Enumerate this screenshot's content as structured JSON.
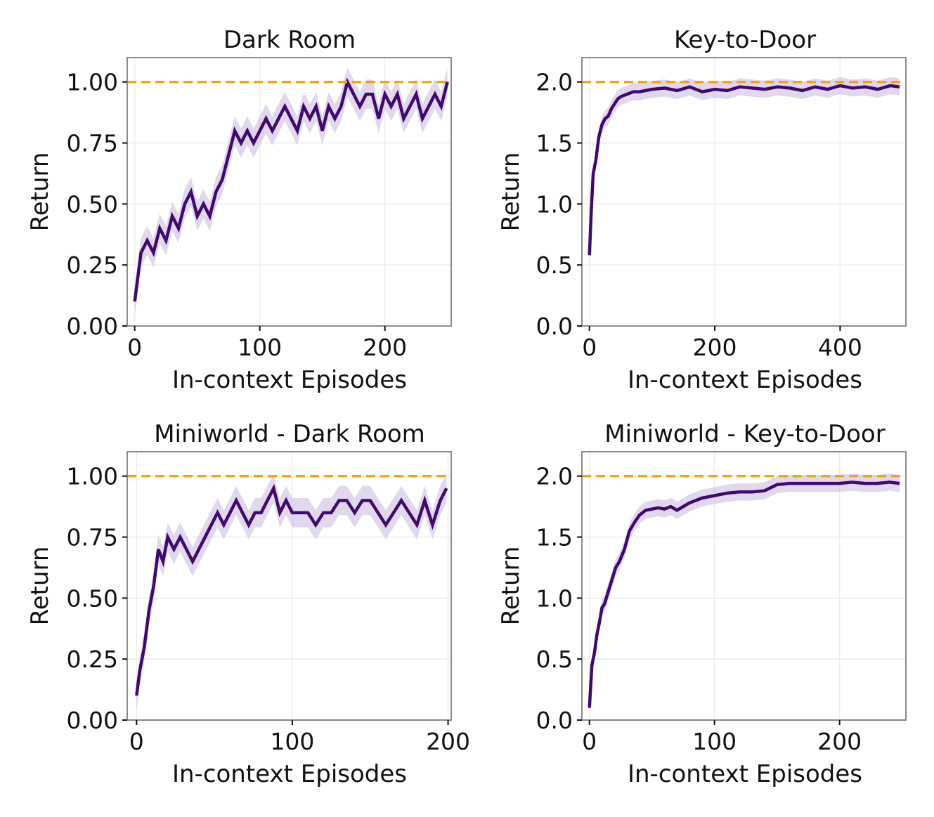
{
  "colors": {
    "line": "#3f0a6b",
    "band": "#cbb8e0",
    "optimal": "#f5a316",
    "grid": "#ececec",
    "frame": "#8a8a8a"
  },
  "chart_data": [
    {
      "type": "line",
      "title": "Dark Room",
      "xlabel": "In-context Episodes",
      "ylabel": "Return",
      "xlim": [
        -6,
        253
      ],
      "ylim": [
        0,
        1.1
      ],
      "xticks": [
        0,
        100,
        200
      ],
      "yticks": [
        0.0,
        0.25,
        0.5,
        0.75,
        1.0
      ],
      "ytick_labels": [
        "0.00",
        "0.25",
        "0.50",
        "0.75",
        "1.00"
      ],
      "optimal_return": 1.0,
      "band_halfwidth": 0.06,
      "series": [
        {
          "name": "mean return",
          "x": [
            0,
            5,
            10,
            15,
            20,
            25,
            30,
            35,
            40,
            45,
            50,
            55,
            60,
            65,
            70,
            75,
            80,
            85,
            90,
            95,
            100,
            105,
            110,
            115,
            120,
            125,
            130,
            135,
            140,
            145,
            150,
            155,
            160,
            165,
            170,
            175,
            180,
            185,
            190,
            195,
            200,
            205,
            210,
            215,
            220,
            225,
            230,
            235,
            240,
            245,
            250
          ],
          "y": [
            0.1,
            0.3,
            0.35,
            0.3,
            0.4,
            0.35,
            0.45,
            0.4,
            0.5,
            0.55,
            0.45,
            0.5,
            0.45,
            0.55,
            0.6,
            0.7,
            0.8,
            0.75,
            0.8,
            0.75,
            0.8,
            0.85,
            0.8,
            0.85,
            0.9,
            0.85,
            0.8,
            0.9,
            0.85,
            0.9,
            0.8,
            0.9,
            0.85,
            0.9,
            1.0,
            0.95,
            0.9,
            0.95,
            0.95,
            0.85,
            0.95,
            0.9,
            0.95,
            0.85,
            0.9,
            0.95,
            0.85,
            0.9,
            0.95,
            0.9,
            1.0
          ]
        }
      ]
    },
    {
      "type": "line",
      "title": "Key-to-Door",
      "xlabel": "In-context Episodes",
      "ylabel": "Return",
      "xlim": [
        -12,
        505
      ],
      "ylim": [
        0,
        2.2
      ],
      "xticks": [
        0,
        200,
        400
      ],
      "yticks": [
        0.0,
        0.5,
        1.0,
        1.5,
        2.0
      ],
      "ytick_labels": [
        "0.0",
        "0.5",
        "1.0",
        "1.5",
        "2.0"
      ],
      "optimal_return": 2.0,
      "band_halfwidth": 0.07,
      "series": [
        {
          "name": "mean return",
          "x": [
            0,
            3,
            6,
            10,
            15,
            20,
            25,
            30,
            35,
            40,
            45,
            50,
            60,
            70,
            80,
            90,
            100,
            120,
            140,
            160,
            180,
            200,
            220,
            240,
            260,
            280,
            300,
            320,
            340,
            360,
            380,
            400,
            420,
            440,
            460,
            480,
            495
          ],
          "y": [
            0.58,
            0.95,
            1.25,
            1.35,
            1.55,
            1.65,
            1.7,
            1.72,
            1.78,
            1.82,
            1.86,
            1.88,
            1.9,
            1.92,
            1.92,
            1.93,
            1.94,
            1.95,
            1.93,
            1.96,
            1.92,
            1.94,
            1.93,
            1.96,
            1.95,
            1.94,
            1.96,
            1.95,
            1.93,
            1.96,
            1.94,
            1.97,
            1.95,
            1.96,
            1.94,
            1.97,
            1.96
          ]
        }
      ]
    },
    {
      "type": "line",
      "title": "Miniworld - Dark Room",
      "xlabel": "In-context Episodes",
      "ylabel": "Return",
      "xlim": [
        -6,
        202
      ],
      "ylim": [
        0,
        1.1
      ],
      "xticks": [
        0,
        100,
        200
      ],
      "yticks": [
        0.0,
        0.25,
        0.5,
        0.75,
        1.0
      ],
      "ytick_labels": [
        "0.00",
        "0.25",
        "0.50",
        "0.75",
        "1.00"
      ],
      "optimal_return": 1.0,
      "band_halfwidth": 0.06,
      "series": [
        {
          "name": "mean return",
          "x": [
            0,
            2,
            5,
            8,
            11,
            14,
            17,
            20,
            24,
            28,
            32,
            36,
            40,
            44,
            48,
            52,
            56,
            60,
            64,
            68,
            72,
            76,
            80,
            84,
            88,
            92,
            96,
            100,
            105,
            110,
            115,
            120,
            125,
            130,
            135,
            140,
            145,
            150,
            155,
            160,
            165,
            170,
            175,
            180,
            185,
            190,
            195,
            199
          ],
          "y": [
            0.1,
            0.2,
            0.3,
            0.45,
            0.55,
            0.7,
            0.65,
            0.75,
            0.7,
            0.75,
            0.7,
            0.65,
            0.7,
            0.75,
            0.8,
            0.85,
            0.8,
            0.85,
            0.9,
            0.85,
            0.8,
            0.85,
            0.85,
            0.9,
            0.95,
            0.85,
            0.9,
            0.85,
            0.85,
            0.85,
            0.8,
            0.85,
            0.85,
            0.9,
            0.9,
            0.85,
            0.9,
            0.9,
            0.85,
            0.8,
            0.85,
            0.9,
            0.85,
            0.8,
            0.9,
            0.8,
            0.9,
            0.95
          ]
        }
      ]
    },
    {
      "type": "line",
      "title": "Miniworld - Key-to-Door",
      "xlabel": "In-context Episodes",
      "ylabel": "Return",
      "xlim": [
        -6,
        253
      ],
      "ylim": [
        0,
        2.2
      ],
      "xticks": [
        0,
        100,
        200
      ],
      "yticks": [
        0.0,
        0.5,
        1.0,
        1.5,
        2.0
      ],
      "ytick_labels": [
        "0.0",
        "0.5",
        "1.0",
        "1.5",
        "2.0"
      ],
      "optimal_return": 2.0,
      "band_halfwidth": 0.07,
      "series": [
        {
          "name": "mean return",
          "x": [
            0,
            2,
            4,
            6,
            8,
            10,
            12,
            15,
            18,
            21,
            24,
            28,
            32,
            36,
            40,
            45,
            50,
            55,
            60,
            65,
            70,
            80,
            90,
            100,
            110,
            120,
            130,
            140,
            150,
            160,
            170,
            180,
            190,
            200,
            210,
            220,
            230,
            240,
            248
          ],
          "y": [
            0.1,
            0.45,
            0.55,
            0.7,
            0.8,
            0.92,
            0.95,
            1.05,
            1.15,
            1.25,
            1.3,
            1.4,
            1.55,
            1.62,
            1.68,
            1.72,
            1.73,
            1.74,
            1.73,
            1.75,
            1.72,
            1.78,
            1.82,
            1.84,
            1.86,
            1.87,
            1.87,
            1.88,
            1.93,
            1.94,
            1.94,
            1.94,
            1.94,
            1.94,
            1.95,
            1.94,
            1.94,
            1.95,
            1.94
          ]
        }
      ]
    }
  ]
}
